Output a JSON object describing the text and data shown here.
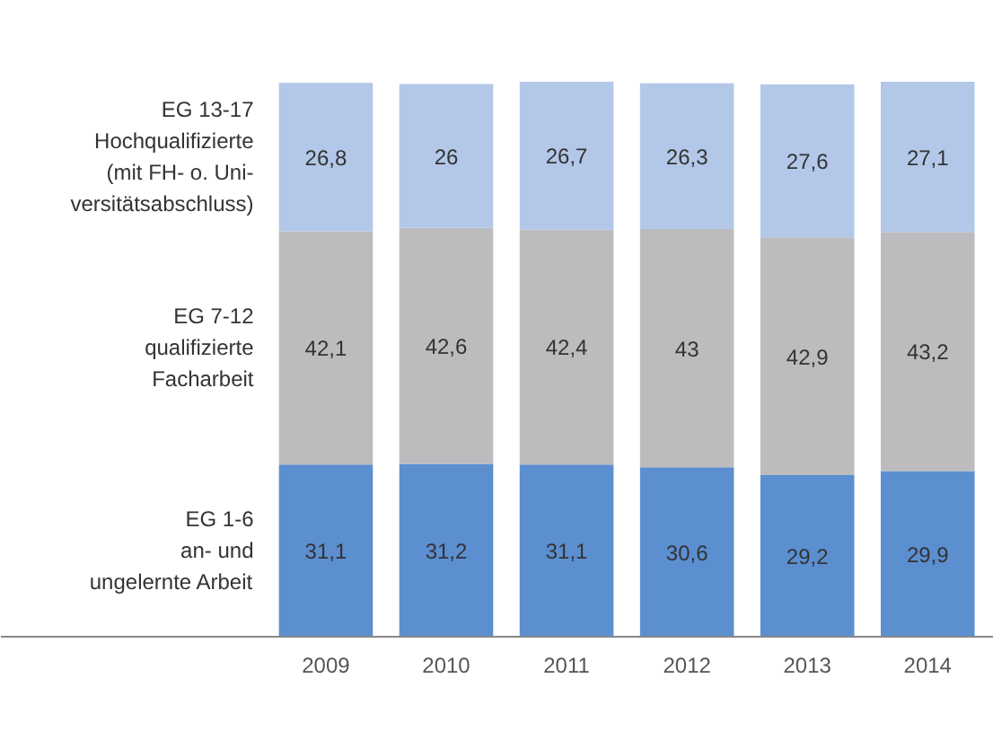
{
  "chart_data": {
    "type": "bar",
    "stacked": true,
    "legend": false,
    "categories": [
      "2009",
      "2010",
      "2011",
      "2012",
      "2013",
      "2014"
    ],
    "series": [
      {
        "name": "EG 1-6\nan- und\nungelernte Arbeit",
        "color": "#5b8fd0",
        "values": [
          31.1,
          31.2,
          31.1,
          30.6,
          29.2,
          29.9
        ],
        "value_labels": [
          "31,1",
          "31,2",
          "31,1",
          "30,6",
          "29,2",
          "29,9"
        ]
      },
      {
        "name": "EG 7-12\nqualifizierte\nFacharbeit",
        "color": "#bcbcbe",
        "values": [
          42.1,
          42.6,
          42.4,
          43,
          42.9,
          43.2
        ],
        "value_labels": [
          "42,1",
          "42,6",
          "42,4",
          "43",
          "42,9",
          "43,2"
        ]
      },
      {
        "name": "EG 13-17\nHochqualifizierte\n(mit FH- o. Uni-\nversitätsabschluss)",
        "color": "#b3c8e8",
        "values": [
          26.8,
          26,
          26.7,
          26.3,
          27.6,
          27.1
        ],
        "value_labels": [
          "26,8",
          "26",
          "26,7",
          "26,3",
          "27,6",
          "27,1"
        ]
      }
    ]
  }
}
